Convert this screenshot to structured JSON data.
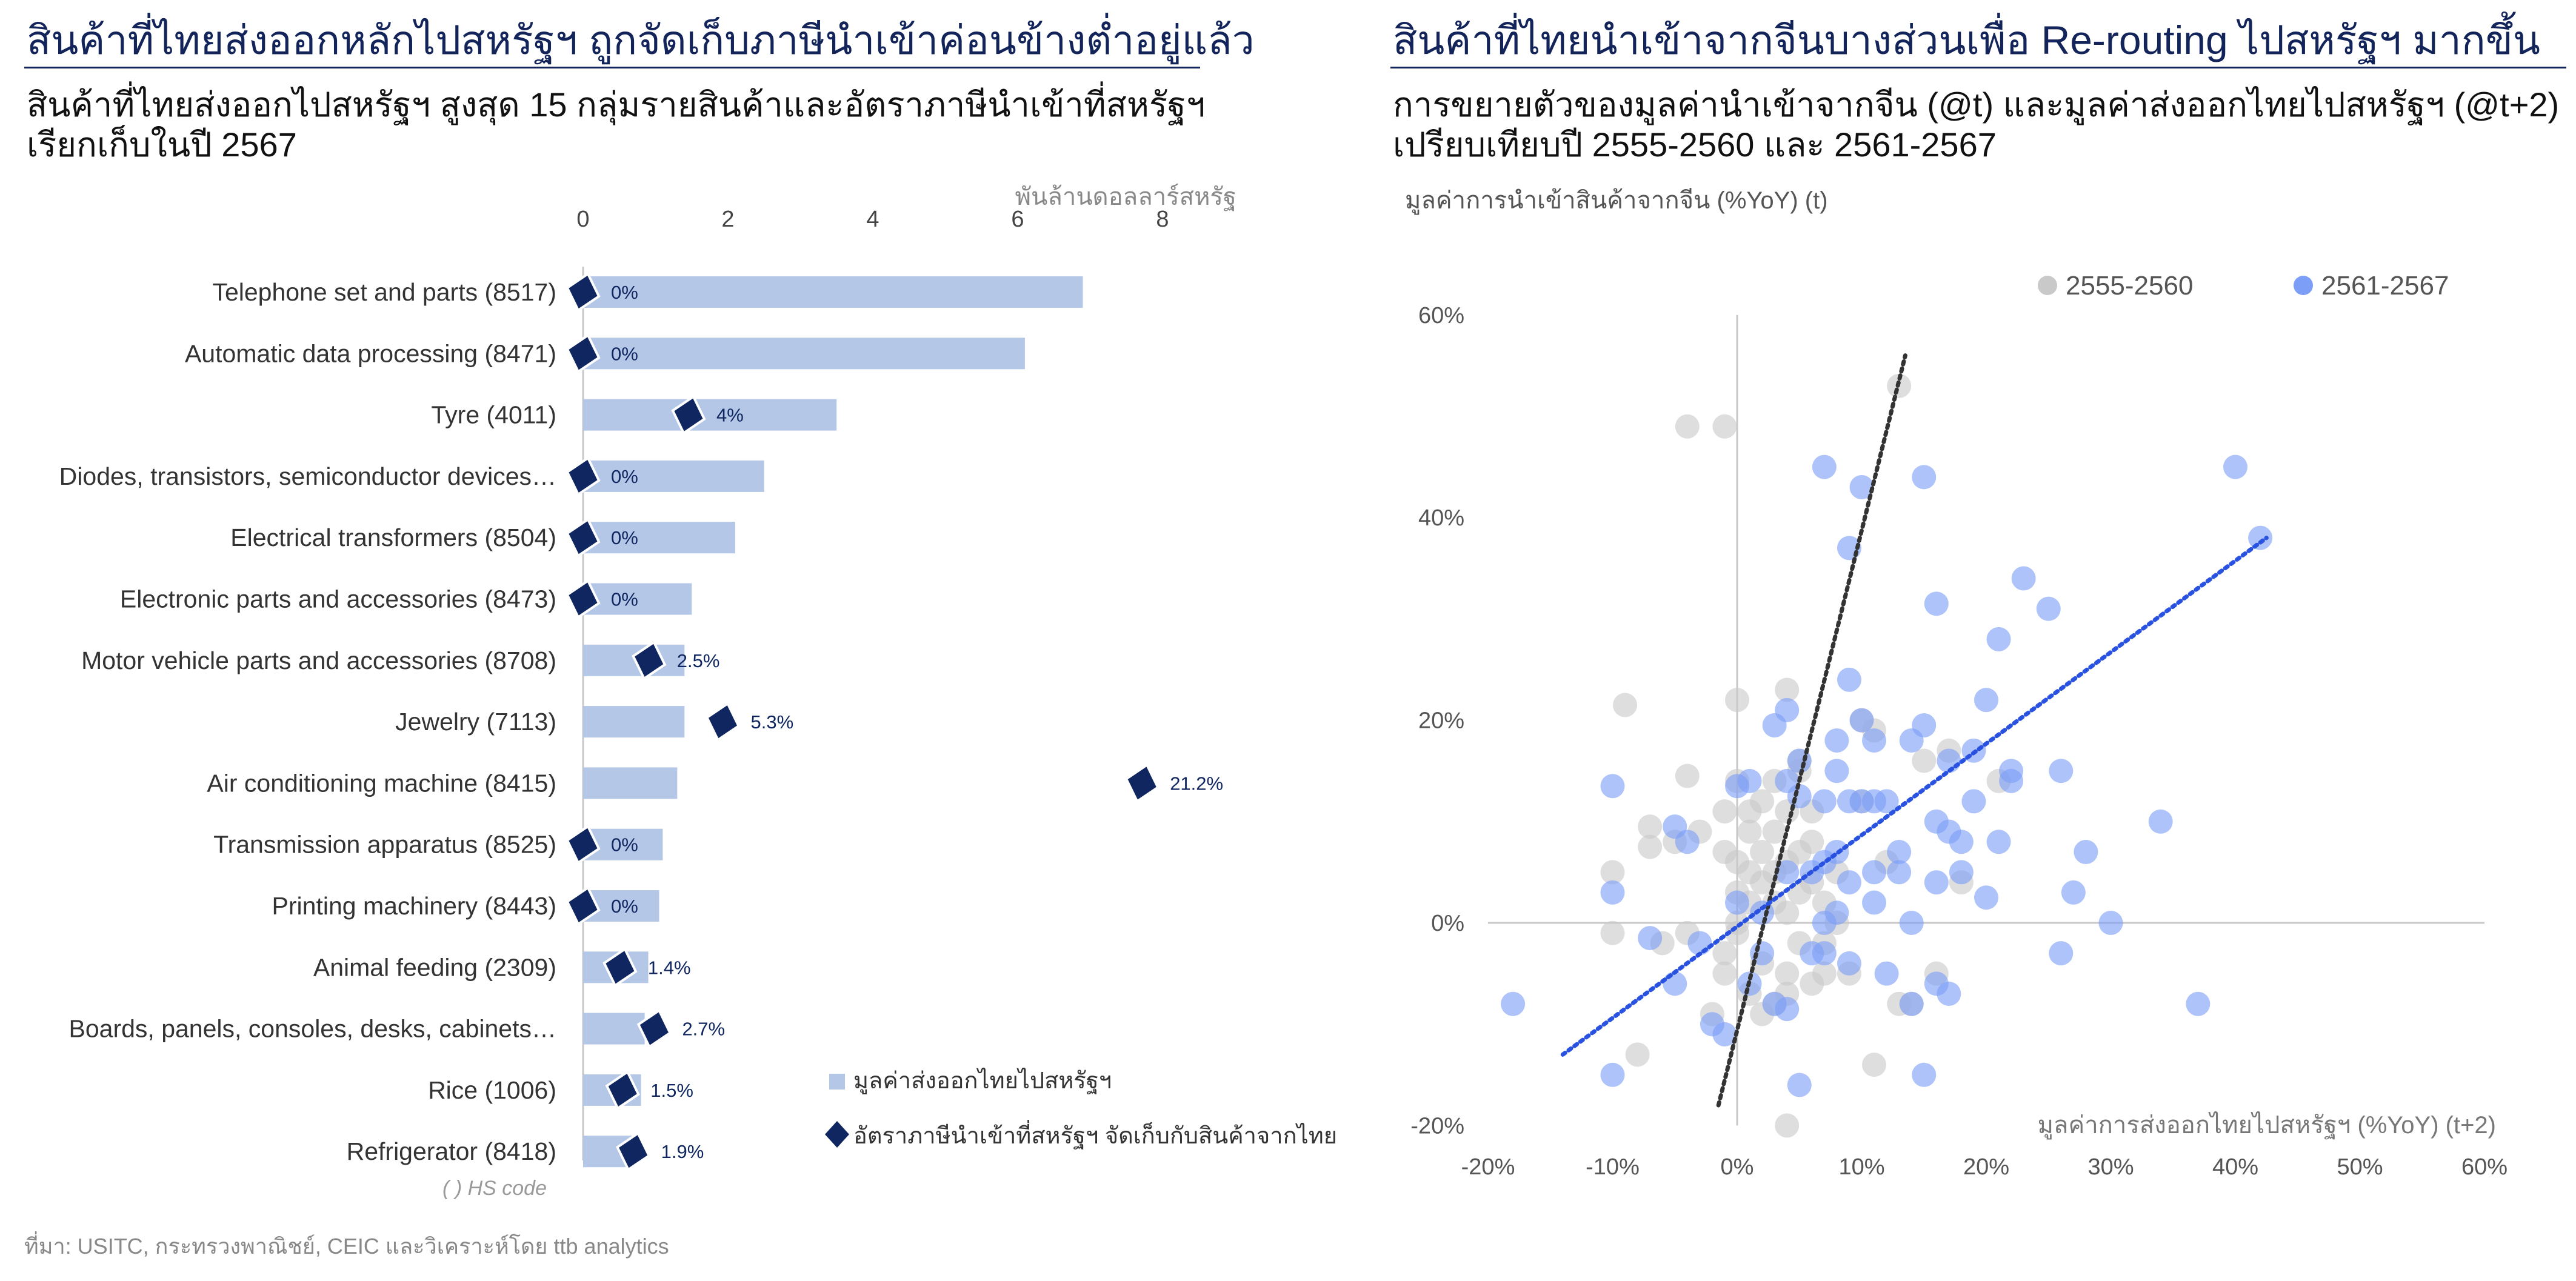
{
  "left_panel": {
    "title": "สินค้าที่ไทยส่งออกหลักไปสหรัฐฯ ถูกจัดเก็บภาษีนำเข้าค่อนข้างต่ำอยู่แล้ว",
    "subtitle_line1": "สินค้าที่ไทยส่งออกไปสหรัฐฯ สูงสุด 15 กลุ่มรายสินค้าและอัตราภาษีนำเข้าที่สหรัฐฯ",
    "subtitle_line2": "เรียกเก็บในปี 2567",
    "hs_note": "( ) HS code"
  },
  "right_panel": {
    "title": "สินค้าที่ไทยนำเข้าจากจีนบางส่วนเพื่อ Re-routing ไปสหรัฐฯ มากขึ้น",
    "subtitle_line1": "การขยายตัวของมูลค่านำเข้าจากจีน (@t) และมูลค่าส่งออกไทยไปสหรัฐฯ (@t+2)",
    "subtitle_line2": "เปรียบเทียบปี 2555-2560 และ 2561-2567"
  },
  "source": "ที่มา: USITC, กระทรวงพาณิชย์, CEIC และวิเคราะห์โดย ttb analytics",
  "colors": {
    "navy": "#0f2660",
    "bar": "#b4c7e7",
    "grey_dot": "#c9c9c9",
    "blue_dot": "#7d9ef7",
    "trend_blue": "#2a52e0",
    "trend_black": "#333333"
  },
  "chart_data": [
    {
      "type": "bar",
      "xlabel": "พันล้านดอลลาร์สหรัฐ",
      "xlim": [
        0,
        8
      ],
      "xticks": [
        0,
        2,
        4,
        6,
        8
      ],
      "categories": [
        "Telephone set and parts (8517)",
        "Automatic data processing (8471)",
        "Tyre (4011)",
        "Diodes, transistors, semiconductor devices…",
        "Electrical transformers (8504)",
        "Electronic parts and accessories (8473)",
        "Motor vehicle parts and accessories (8708)",
        "Jewelry (7113)",
        "Air conditioning machine (8415)",
        "Transmission apparatus (8525)",
        "Printing machinery (8443)",
        "Animal feeding (2309)",
        "Boards, panels, consoles, desks, cabinets…",
        "Rice (1006)",
        "Refrigerator (8418)"
      ],
      "series": [
        {
          "name": "มูลค่าส่งออกไทยไปสหรัฐฯ",
          "values": [
            6.9,
            6.1,
            3.5,
            2.5,
            2.1,
            1.5,
            1.4,
            1.4,
            1.3,
            1.1,
            1.05,
            0.9,
            0.85,
            0.8,
            0.7
          ]
        },
        {
          "name": "อัตราภาษีนำเข้าที่สหรัฐฯ จัดเก็บกับสินค้าจากไทย",
          "marker": "diamond",
          "rate_percent": [
            0,
            0,
            4,
            0,
            0,
            0,
            2.5,
            5.3,
            21.2,
            0,
            0,
            1.4,
            2.7,
            1.5,
            1.9
          ],
          "labels": [
            "0%",
            "0%",
            "4%",
            "0%",
            "0%",
            "0%",
            "2.5%",
            "5.3%",
            "21.2%",
            "0%",
            "0%",
            "1.4%",
            "2.7%",
            "1.5%",
            "1.9%"
          ]
        }
      ]
    },
    {
      "type": "scatter",
      "ylabel": "มูลค่าการนำเข้าสินค้าจากจีน (%YoY) (t)",
      "xlabel": "มูลค่าการส่งออกไทยไปสหรัฐฯ (%YoY) (t+2)",
      "xlim": [
        -20,
        60
      ],
      "ylim": [
        -20,
        60
      ],
      "xticks": [
        "-20%",
        "-10%",
        "0%",
        "10%",
        "20%",
        "30%",
        "40%",
        "50%",
        "60%"
      ],
      "yticks": [
        "-20%",
        "0%",
        "20%",
        "40%",
        "60%"
      ],
      "legend_position": "top-right",
      "series": [
        {
          "name": "2555-2560",
          "color": "#c9c9c9",
          "trendline": {
            "x": [
              -1.5,
              13.5
            ],
            "y": [
              -18,
              56
            ]
          },
          "points": [
            [
              -10,
              5
            ],
            [
              -10,
              -1
            ],
            [
              -9,
              21.5
            ],
            [
              -7,
              9.5
            ],
            [
              -7,
              7.5
            ],
            [
              -6,
              -2
            ],
            [
              -5,
              8
            ],
            [
              -4,
              14.5
            ],
            [
              -4,
              -1
            ],
            [
              -3,
              9
            ],
            [
              -2,
              -9
            ],
            [
              -1,
              7
            ],
            [
              -1,
              11
            ],
            [
              -1,
              -3
            ],
            [
              -1,
              -5
            ],
            [
              0,
              22
            ],
            [
              0,
              14
            ],
            [
              0,
              6
            ],
            [
              0,
              3
            ],
            [
              0,
              0
            ],
            [
              0,
              -1
            ],
            [
              1,
              11
            ],
            [
              1,
              9
            ],
            [
              1,
              5
            ],
            [
              1,
              2
            ],
            [
              1,
              -7
            ],
            [
              2,
              12
            ],
            [
              2,
              7
            ],
            [
              2,
              4
            ],
            [
              2,
              -4
            ],
            [
              2,
              -9
            ],
            [
              3,
              9
            ],
            [
              3,
              5
            ],
            [
              3,
              2
            ],
            [
              3,
              -8
            ],
            [
              4,
              23
            ],
            [
              4,
              11
            ],
            [
              4,
              6
            ],
            [
              4,
              1
            ],
            [
              4,
              -5
            ],
            [
              4,
              -7
            ],
            [
              4,
              -20
            ],
            [
              5,
              15
            ],
            [
              5,
              7
            ],
            [
              5,
              3
            ],
            [
              5,
              -2
            ],
            [
              6,
              8
            ],
            [
              6,
              4
            ],
            [
              6,
              -6
            ],
            [
              7,
              2
            ],
            [
              7,
              -2
            ],
            [
              7,
              -5
            ],
            [
              8,
              5
            ],
            [
              8,
              0
            ],
            [
              9,
              -5
            ],
            [
              10,
              20
            ],
            [
              10,
              12
            ],
            [
              11,
              19
            ],
            [
              11,
              -14
            ],
            [
              12,
              6
            ],
            [
              13,
              -8
            ],
            [
              14,
              -8
            ],
            [
              15,
              16
            ],
            [
              16,
              -5
            ],
            [
              17,
              17
            ],
            [
              18,
              4
            ],
            [
              21,
              14
            ],
            [
              -4,
              49
            ],
            [
              -1,
              49
            ],
            [
              13,
              53
            ],
            [
              5,
              16
            ],
            [
              3,
              14
            ],
            [
              6,
              11
            ],
            [
              -8,
              -13
            ]
          ]
        },
        {
          "name": "2561-2567",
          "color": "#7d9ef7",
          "trendline": {
            "x": [
              -14,
              42.5
            ],
            "y": [
              -13,
              38
            ]
          },
          "points": [
            [
              -18,
              -8
            ],
            [
              -10,
              13.5
            ],
            [
              -10,
              3
            ],
            [
              -10,
              -15
            ],
            [
              -7,
              -1.5
            ],
            [
              -5,
              9.5
            ],
            [
              -5,
              -6
            ],
            [
              -4,
              8
            ],
            [
              -3,
              -2
            ],
            [
              -2,
              -10
            ],
            [
              -1,
              -11
            ],
            [
              0,
              13.5
            ],
            [
              0,
              2
            ],
            [
              1,
              14
            ],
            [
              1,
              -6
            ],
            [
              2,
              -3
            ],
            [
              2,
              1
            ],
            [
              3,
              19.5
            ],
            [
              3,
              -8
            ],
            [
              4,
              21
            ],
            [
              4,
              14
            ],
            [
              4,
              5
            ],
            [
              4,
              -8.5
            ],
            [
              5,
              16
            ],
            [
              5,
              12.5
            ],
            [
              5,
              -16
            ],
            [
              6,
              -3
            ],
            [
              6,
              5
            ],
            [
              7,
              12
            ],
            [
              7,
              6
            ],
            [
              7,
              0
            ],
            [
              7,
              -3
            ],
            [
              8,
              15
            ],
            [
              8,
              18
            ],
            [
              8,
              7
            ],
            [
              8,
              1
            ],
            [
              9,
              24
            ],
            [
              9,
              12
            ],
            [
              9,
              4
            ],
            [
              9,
              -4
            ],
            [
              10,
              20
            ],
            [
              10,
              12
            ],
            [
              11,
              18
            ],
            [
              11,
              12
            ],
            [
              11,
              5
            ],
            [
              11,
              2
            ],
            [
              12,
              12
            ],
            [
              12,
              -5
            ],
            [
              13,
              7
            ],
            [
              13,
              5
            ],
            [
              14,
              18
            ],
            [
              14,
              0
            ],
            [
              14,
              -8
            ],
            [
              15,
              19.5
            ],
            [
              15,
              -15
            ],
            [
              16,
              10
            ],
            [
              16,
              4
            ],
            [
              16,
              -6
            ],
            [
              17,
              16
            ],
            [
              17,
              9
            ],
            [
              17,
              -7
            ],
            [
              18,
              8
            ],
            [
              18,
              5
            ],
            [
              19,
              17
            ],
            [
              19,
              12
            ],
            [
              20,
              22
            ],
            [
              20,
              2.5
            ],
            [
              21,
              8
            ],
            [
              21,
              28
            ],
            [
              22,
              15
            ],
            [
              22,
              14
            ],
            [
              23,
              34
            ],
            [
              25,
              31
            ],
            [
              26,
              15
            ],
            [
              26,
              -3
            ],
            [
              27,
              3
            ],
            [
              28,
              7
            ],
            [
              30,
              0
            ],
            [
              34,
              10
            ],
            [
              37,
              -8
            ],
            [
              40,
              45
            ],
            [
              42,
              38
            ],
            [
              10,
              43
            ],
            [
              15,
              44
            ],
            [
              9,
              37
            ],
            [
              7,
              45
            ],
            [
              16,
              31.5
            ]
          ]
        }
      ]
    }
  ]
}
